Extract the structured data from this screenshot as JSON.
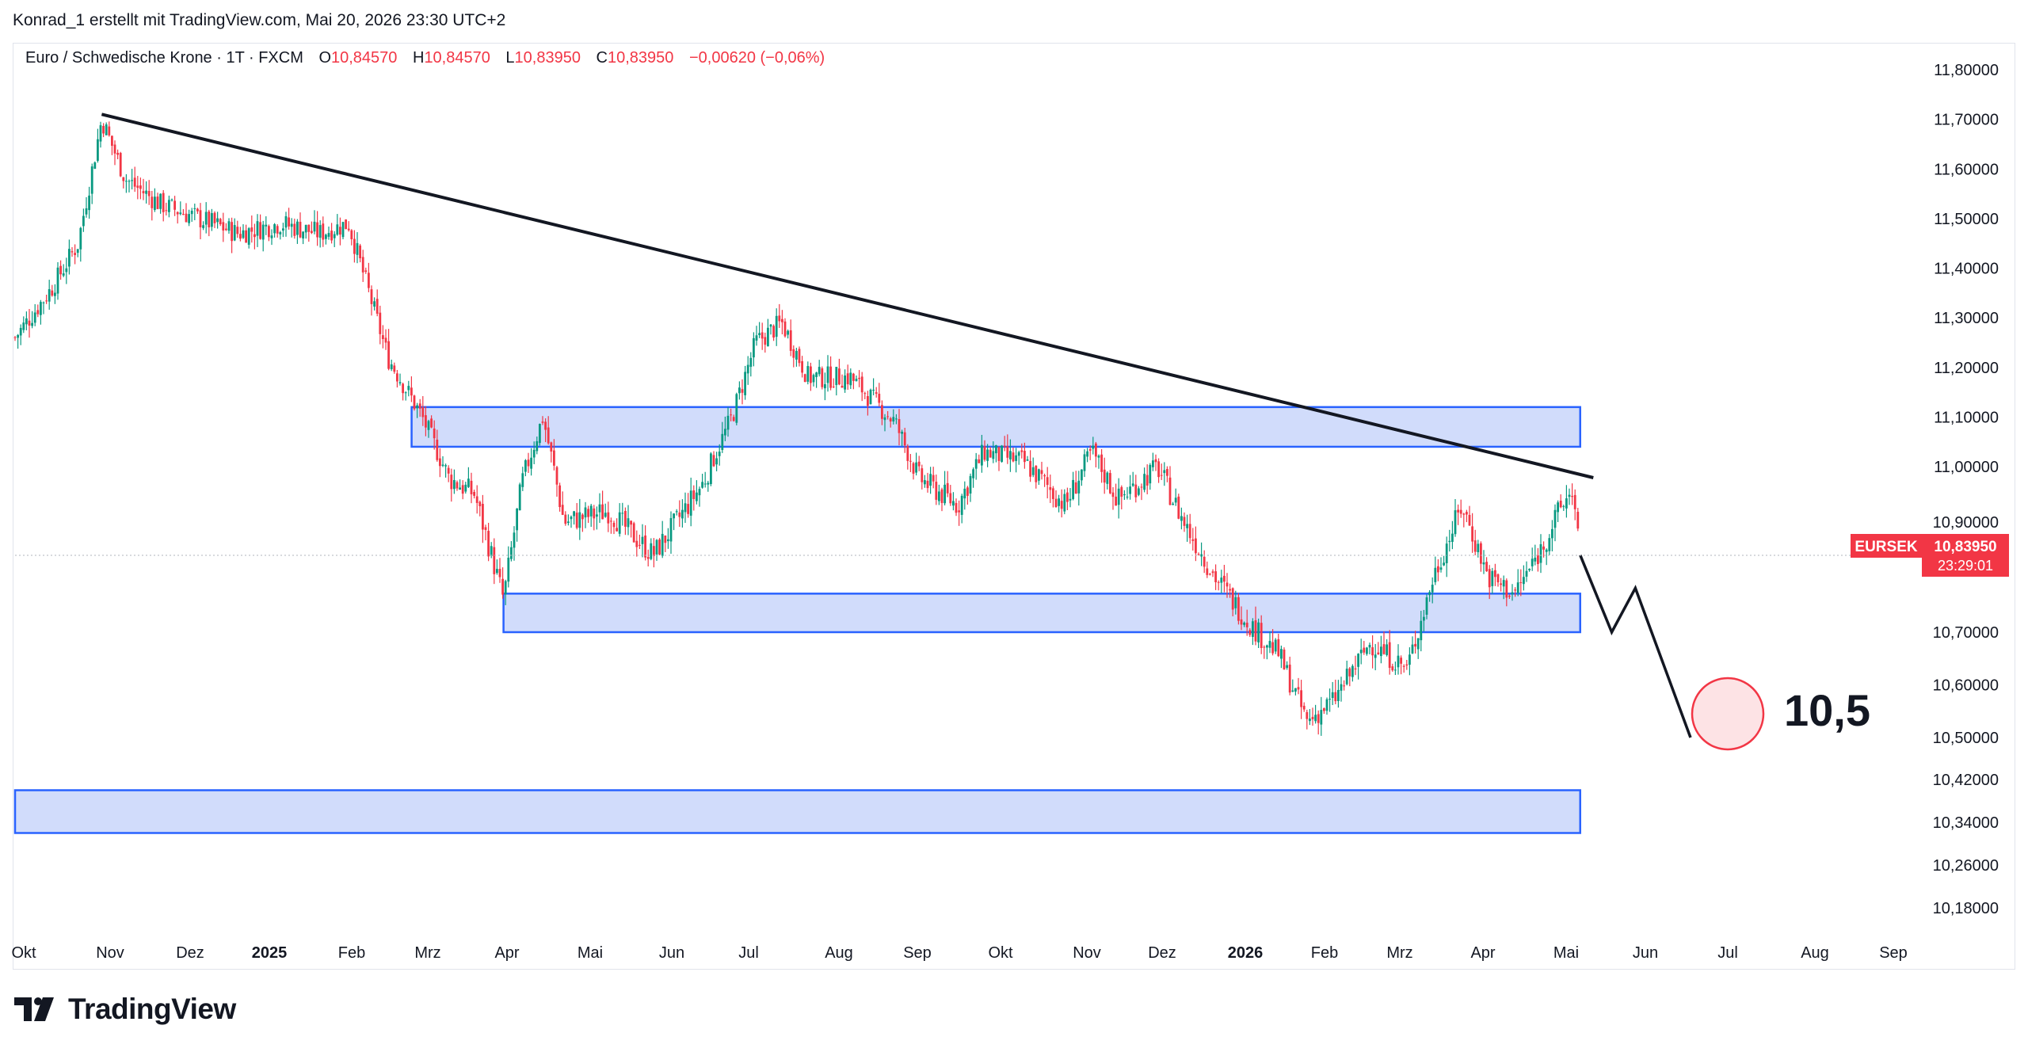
{
  "header": {
    "author_line": "Konrad_1 erstellt mit TradingView.com, Mai 20, 2026 23:30 UTC+2"
  },
  "legend": {
    "symbol": "Euro / Schwedische Krone · 1T · FXCM",
    "o_label": "O",
    "o_value": "10,84570",
    "h_label": "H",
    "h_value": "10,84570",
    "l_label": "L",
    "l_value": "10,83950",
    "c_label": "C",
    "c_value": "10,83950",
    "change": "−0,00620 (−0,06%)"
  },
  "price_badge": {
    "ticker": "EURSEK",
    "price": "10,83950",
    "countdown": "23:29:01",
    "color": "#f23645"
  },
  "annotation": {
    "target_label": "10,5"
  },
  "footer": {
    "brand": "TradingView"
  },
  "colors": {
    "up": "#089981",
    "down": "#f23645",
    "zone_fill": "#d1dcfb",
    "zone_border": "#2962ff",
    "trendline": "#131722"
  },
  "chart_data": {
    "type": "line",
    "symbol": "EURSEK",
    "candle_style": "candlestick",
    "y_ticks": [
      "11,80000",
      "11,70000",
      "11,60000",
      "11,50000",
      "11,40000",
      "11,30000",
      "11,20000",
      "11,10000",
      "11,00000",
      "10,90000",
      "10,70000",
      "10,60000",
      "10,50000",
      "10,42000",
      "10,34000",
      "10,26000",
      "10,18000"
    ],
    "x_ticks": [
      {
        "label": "Okt",
        "bold": false
      },
      {
        "label": "Nov",
        "bold": false
      },
      {
        "label": "Dez",
        "bold": false
      },
      {
        "label": "2025",
        "bold": true
      },
      {
        "label": "Feb",
        "bold": false
      },
      {
        "label": "Mrz",
        "bold": false
      },
      {
        "label": "Apr",
        "bold": false
      },
      {
        "label": "Mai",
        "bold": false
      },
      {
        "label": "Jun",
        "bold": false
      },
      {
        "label": "Jul",
        "bold": false
      },
      {
        "label": "Aug",
        "bold": false
      },
      {
        "label": "Sep",
        "bold": false
      },
      {
        "label": "Okt",
        "bold": false
      },
      {
        "label": "Nov",
        "bold": false
      },
      {
        "label": "Dez",
        "bold": false
      },
      {
        "label": "2026",
        "bold": true
      },
      {
        "label": "Feb",
        "bold": false
      },
      {
        "label": "Mrz",
        "bold": false
      },
      {
        "label": "Apr",
        "bold": false
      },
      {
        "label": "Mai",
        "bold": false
      },
      {
        "label": "Jun",
        "bold": false
      },
      {
        "label": "Jul",
        "bold": false
      },
      {
        "label": "Aug",
        "bold": false
      },
      {
        "label": "Sep",
        "bold": false
      }
    ],
    "close_path": [
      {
        "date": "2024-10-01",
        "close": 11.26
      },
      {
        "date": "2024-10-15",
        "close": 11.36
      },
      {
        "date": "2024-10-25",
        "close": 11.45
      },
      {
        "date": "2024-11-03",
        "close": 11.7
      },
      {
        "date": "2024-11-12",
        "close": 11.58
      },
      {
        "date": "2024-11-25",
        "close": 11.53
      },
      {
        "date": "2024-12-10",
        "close": 11.5
      },
      {
        "date": "2024-12-25",
        "close": 11.47
      },
      {
        "date": "2025-01-10",
        "close": 11.49
      },
      {
        "date": "2025-01-25",
        "close": 11.47
      },
      {
        "date": "2025-02-05",
        "close": 11.49
      },
      {
        "date": "2025-02-20",
        "close": 11.22
      },
      {
        "date": "2025-03-05",
        "close": 11.1
      },
      {
        "date": "2025-03-15",
        "close": 10.98
      },
      {
        "date": "2025-03-25",
        "close": 10.95
      },
      {
        "date": "2025-04-05",
        "close": 10.76
      },
      {
        "date": "2025-04-12",
        "close": 10.97
      },
      {
        "date": "2025-04-20",
        "close": 11.1
      },
      {
        "date": "2025-04-28",
        "close": 10.9
      },
      {
        "date": "2025-05-15",
        "close": 10.92
      },
      {
        "date": "2025-06-01",
        "close": 10.84
      },
      {
        "date": "2025-06-20",
        "close": 10.97
      },
      {
        "date": "2025-07-01",
        "close": 11.1
      },
      {
        "date": "2025-07-10",
        "close": 11.25
      },
      {
        "date": "2025-07-20",
        "close": 11.29
      },
      {
        "date": "2025-07-30",
        "close": 11.18
      },
      {
        "date": "2025-08-15",
        "close": 11.18
      },
      {
        "date": "2025-09-01",
        "close": 11.09
      },
      {
        "date": "2025-09-10",
        "close": 10.98
      },
      {
        "date": "2025-09-25",
        "close": 10.93
      },
      {
        "date": "2025-10-05",
        "close": 11.03
      },
      {
        "date": "2025-10-20",
        "close": 11.01
      },
      {
        "date": "2025-11-05",
        "close": 10.93
      },
      {
        "date": "2025-11-15",
        "close": 11.03
      },
      {
        "date": "2025-11-25",
        "close": 10.94
      },
      {
        "date": "2025-12-10",
        "close": 11.0
      },
      {
        "date": "2025-12-20",
        "close": 10.9
      },
      {
        "date": "2026-01-01",
        "close": 10.8
      },
      {
        "date": "2026-01-15",
        "close": 10.71
      },
      {
        "date": "2026-01-25",
        "close": 10.66
      },
      {
        "date": "2026-02-05",
        "close": 10.53
      },
      {
        "date": "2026-02-15",
        "close": 10.57
      },
      {
        "date": "2026-03-01",
        "close": 10.68
      },
      {
        "date": "2026-03-15",
        "close": 10.63
      },
      {
        "date": "2026-03-25",
        "close": 10.8
      },
      {
        "date": "2026-04-05",
        "close": 10.93
      },
      {
        "date": "2026-04-15",
        "close": 10.8
      },
      {
        "date": "2026-04-25",
        "close": 10.77
      },
      {
        "date": "2026-05-05",
        "close": 10.85
      },
      {
        "date": "2026-05-12",
        "close": 10.92
      },
      {
        "date": "2026-05-17",
        "close": 10.96
      },
      {
        "date": "2026-05-20",
        "close": 10.8395
      }
    ],
    "trendline": [
      {
        "date": "2024-11-03",
        "price": 11.71
      },
      {
        "date": "2026-05-25",
        "price": 10.98
      }
    ],
    "zones": [
      {
        "from": "2025-03-01",
        "to": "2026-05-20",
        "top": 11.12,
        "bottom": 11.04
      },
      {
        "from": "2025-04-05",
        "to": "2026-05-20",
        "top": 10.77,
        "bottom": 10.7
      },
      {
        "from": "2024-10-01",
        "to": "2026-05-20",
        "top": 10.4,
        "bottom": 10.32
      }
    ],
    "projection": [
      {
        "date": "2026-05-20",
        "price": 10.84
      },
      {
        "date": "2026-06-01",
        "price": 10.7
      },
      {
        "date": "2026-06-10",
        "price": 10.78
      },
      {
        "date": "2026-07-01",
        "price": 10.5
      }
    ],
    "target": {
      "date": "2026-07-01",
      "price": 10.5
    },
    "grid": false
  }
}
